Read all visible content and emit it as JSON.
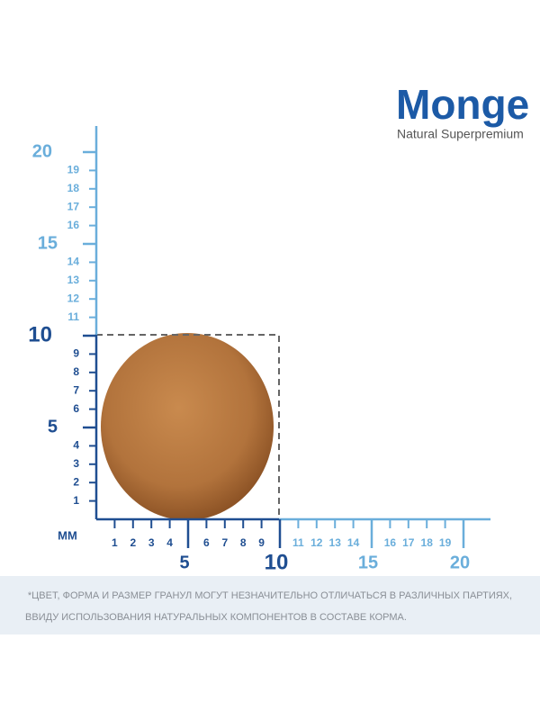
{
  "logo": {
    "brand": "Monge",
    "tagline": "Natural Superpremium"
  },
  "ruler": {
    "unit": "ММ",
    "y_minor_labels": [
      1,
      2,
      3,
      4,
      6,
      7,
      8,
      9,
      11,
      12,
      13,
      14,
      16,
      17,
      18,
      19
    ],
    "y_major_labels": [
      5,
      10,
      15,
      20
    ],
    "x_minor_labels": [
      1,
      2,
      3,
      4,
      6,
      7,
      8,
      9,
      11,
      12,
      13,
      14,
      16,
      17,
      18,
      19
    ],
    "x_major_labels": [
      5,
      10,
      15,
      20
    ]
  },
  "footnote": {
    "lines": [
      "*ЦВЕТ, ФОРМА И РАЗМЕР ГРАНУЛ МОГУТ НЕЗНАЧИТЕЛЬНО ОТЛИЧАТЬСЯ В РАЗЛИЧНЫХ ПАРТИЯХ,",
      "ВВИДУ ИСПОЛЬЗОВАНИЯ НАТУРАЛЬНЫХ КОМПОНЕНТОВ В СОСТАВЕ КОРМА."
    ]
  }
}
